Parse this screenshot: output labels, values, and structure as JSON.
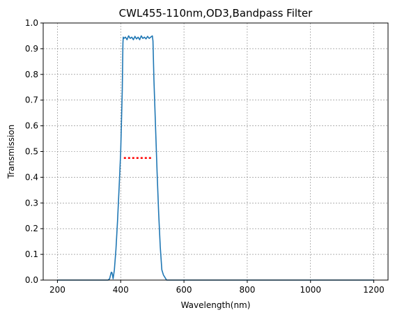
{
  "chart_data": {
    "type": "line",
    "title": "CWL455-110nm,OD3,Bandpass Filter",
    "xlabel": "Wavelength(nm)",
    "ylabel": "Transmission",
    "xlim": [
      155,
      1245
    ],
    "ylim": [
      0,
      1.0
    ],
    "xticks": [
      200,
      400,
      600,
      800,
      1000,
      1200
    ],
    "yticks": [
      0.0,
      0.1,
      0.2,
      0.3,
      0.4,
      0.5,
      0.6,
      0.7,
      0.8,
      0.9,
      1.0
    ],
    "grid": true,
    "colors": {
      "line": "#1f77b4",
      "marker": "#ff0000",
      "grid": "#808080"
    },
    "series": [
      {
        "x": [
          200,
          300,
          360,
          365,
          368,
          370,
          372,
          374,
          376,
          380,
          385,
          390,
          395,
          400,
          405,
          407,
          408,
          410,
          415,
          420,
          425,
          430,
          435,
          440,
          445,
          450,
          455,
          460,
          465,
          470,
          475,
          480,
          485,
          490,
          495,
          500,
          502,
          505,
          510,
          515,
          520,
          525,
          530,
          535,
          540,
          545,
          550,
          600,
          800,
          1000,
          1200
        ],
        "y": [
          0.0,
          0.0,
          0.0,
          0.005,
          0.02,
          0.03,
          0.03,
          0.02,
          0.005,
          0.04,
          0.12,
          0.23,
          0.36,
          0.5,
          0.74,
          0.92,
          0.945,
          0.94,
          0.945,
          0.935,
          0.95,
          0.94,
          0.945,
          0.935,
          0.948,
          0.938,
          0.945,
          0.935,
          0.95,
          0.94,
          0.945,
          0.938,
          0.948,
          0.94,
          0.945,
          0.95,
          0.93,
          0.78,
          0.6,
          0.42,
          0.26,
          0.13,
          0.04,
          0.02,
          0.01,
          0.0,
          0.0,
          0.0,
          0.0,
          0.0,
          0.0
        ]
      }
    ],
    "marker_line": {
      "x": [
        410,
        500
      ],
      "y": 0.475,
      "style": "dotted"
    }
  }
}
